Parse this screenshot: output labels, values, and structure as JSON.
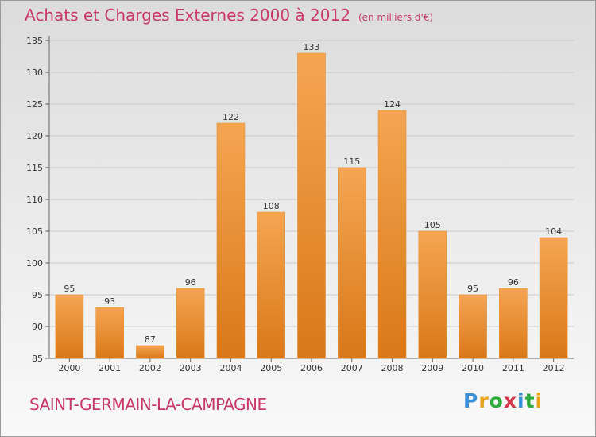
{
  "header": {
    "title": "Achats et Charges Externes 2000 à 2012",
    "unit": "(en milliers d'€)"
  },
  "footer": {
    "place": "SAINT-GERMAIN-LA-CAMPAGNE",
    "logo": "Proxiti"
  },
  "colors": {
    "title": "#c8386a",
    "bar_top": "#f5a552",
    "bar_bottom": "#d97818"
  },
  "chart_data": {
    "type": "bar",
    "title": "Achats et Charges Externes 2000 à 2012",
    "subtitle": "(en milliers d'€)",
    "categories": [
      "2000",
      "2001",
      "2002",
      "2003",
      "2004",
      "2005",
      "2006",
      "2007",
      "2008",
      "2009",
      "2010",
      "2011",
      "2012"
    ],
    "values": [
      95,
      93,
      87,
      96,
      122,
      108,
      133,
      115,
      124,
      105,
      95,
      96,
      104
    ],
    "ylim": [
      85,
      135
    ],
    "yticks": [
      85,
      90,
      95,
      100,
      105,
      110,
      115,
      120,
      125,
      130,
      135
    ],
    "grid": true,
    "xlabel": "",
    "ylabel": ""
  }
}
